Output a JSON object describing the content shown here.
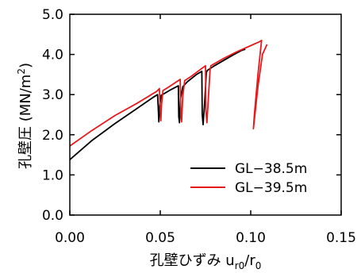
{
  "chart_data": {
    "type": "line",
    "title": "",
    "xlabel": "孔壁ひずみ u",
    "xlabel_sub1": "r0",
    "xlabel_mid": "/r",
    "xlabel_sub2": "0",
    "ylabel": "孔壁圧 (MN/m",
    "ylabel_sup": "2",
    "ylabel_end": ")",
    "xlim": [
      0,
      0.15
    ],
    "ylim": [
      0,
      5.0
    ],
    "xticks": [
      0,
      0.05,
      0.1,
      0.15
    ],
    "xtick_labels": [
      "0.00",
      "0.05",
      "0.10",
      "0.15"
    ],
    "yticks": [
      0,
      1,
      2,
      3,
      4,
      5
    ],
    "ytick_labels": [
      "0.0",
      "1.0",
      "2.0",
      "3.0",
      "4.0",
      "5.0"
    ],
    "legend_position": "bottom-right",
    "series": [
      {
        "name": "GL−38.5m",
        "color": "#000000",
        "x": [
          0.0,
          0.012,
          0.025,
          0.037,
          0.046,
          0.0485,
          0.049,
          0.0492,
          0.0496,
          0.0505,
          0.055,
          0.06,
          0.0602,
          0.0606,
          0.0612,
          0.0625,
          0.065,
          0.07,
          0.073,
          0.0732,
          0.0737,
          0.0745,
          0.0755,
          0.076,
          0.08,
          0.085,
          0.09,
          0.095,
          0.097
        ],
        "y": [
          1.38,
          1.85,
          2.28,
          2.65,
          2.93,
          3.0,
          2.55,
          2.32,
          2.7,
          2.98,
          3.1,
          3.22,
          2.45,
          2.3,
          2.9,
          3.2,
          3.32,
          3.5,
          3.58,
          2.5,
          2.25,
          2.8,
          3.55,
          3.6,
          3.72,
          3.85,
          3.98,
          4.1,
          4.13
        ]
      },
      {
        "name": "GL−39.5m",
        "color": "#e8191c",
        "x": [
          0.0,
          0.012,
          0.025,
          0.037,
          0.048,
          0.0495,
          0.05,
          0.0503,
          0.0507,
          0.0515,
          0.055,
          0.061,
          0.0614,
          0.0618,
          0.0624,
          0.0635,
          0.067,
          0.072,
          0.075,
          0.0752,
          0.0758,
          0.0766,
          0.0775,
          0.078,
          0.085,
          0.092,
          0.099,
          0.105,
          0.106,
          0.104,
          0.102,
          0.1015,
          0.104,
          0.1065,
          0.109
        ],
        "y": [
          1.72,
          2.1,
          2.48,
          2.78,
          3.08,
          3.15,
          2.6,
          2.35,
          2.75,
          3.1,
          3.2,
          3.38,
          2.48,
          2.32,
          2.95,
          3.35,
          3.45,
          3.62,
          3.72,
          2.6,
          2.3,
          2.9,
          3.6,
          3.72,
          3.9,
          4.06,
          4.2,
          4.32,
          4.35,
          3.5,
          2.5,
          2.15,
          3.2,
          4.0,
          4.25
        ]
      }
    ]
  }
}
